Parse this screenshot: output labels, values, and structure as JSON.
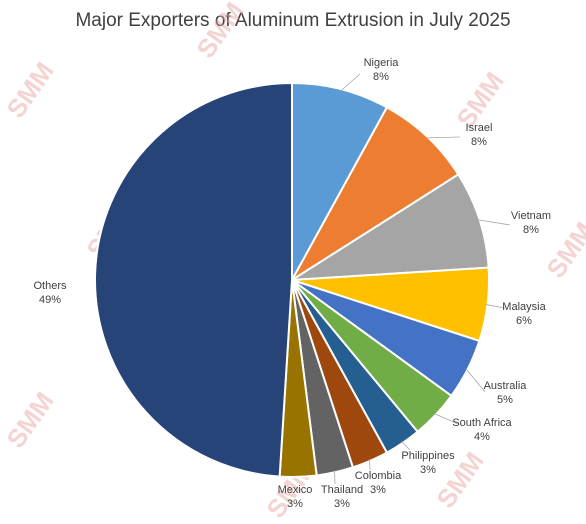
{
  "chart_data": {
    "type": "pie",
    "title": "Major Exporters of Aluminum Extrusion in July 2025",
    "slices": [
      {
        "label": "Nigeria",
        "value": 8,
        "value_label": "8%",
        "color": "#5b9bd5"
      },
      {
        "label": "Israel",
        "value": 8,
        "value_label": "8%",
        "color": "#ed7d31"
      },
      {
        "label": "Vietnam",
        "value": 8,
        "value_label": "8%",
        "color": "#a5a5a5"
      },
      {
        "label": "Malaysia",
        "value": 6,
        "value_label": "6%",
        "color": "#ffc000"
      },
      {
        "label": "Australia",
        "value": 5,
        "value_label": "5%",
        "color": "#4472c4"
      },
      {
        "label": "South Africa",
        "value": 4,
        "value_label": "4%",
        "color": "#70ad47"
      },
      {
        "label": "Philippines",
        "value": 3,
        "value_label": "3%",
        "color": "#255e91"
      },
      {
        "label": "Colombia",
        "value": 3,
        "value_label": "3%",
        "color": "#9e480e"
      },
      {
        "label": "Thailand",
        "value": 3,
        "value_label": "3%",
        "color": "#636363"
      },
      {
        "label": "Mexico",
        "value": 3,
        "value_label": "3%",
        "color": "#997300"
      },
      {
        "label": "Others",
        "value": 49,
        "value_label": "49%",
        "color": "#264478"
      }
    ],
    "legend": "none"
  },
  "watermark": {
    "text": "SMM"
  }
}
